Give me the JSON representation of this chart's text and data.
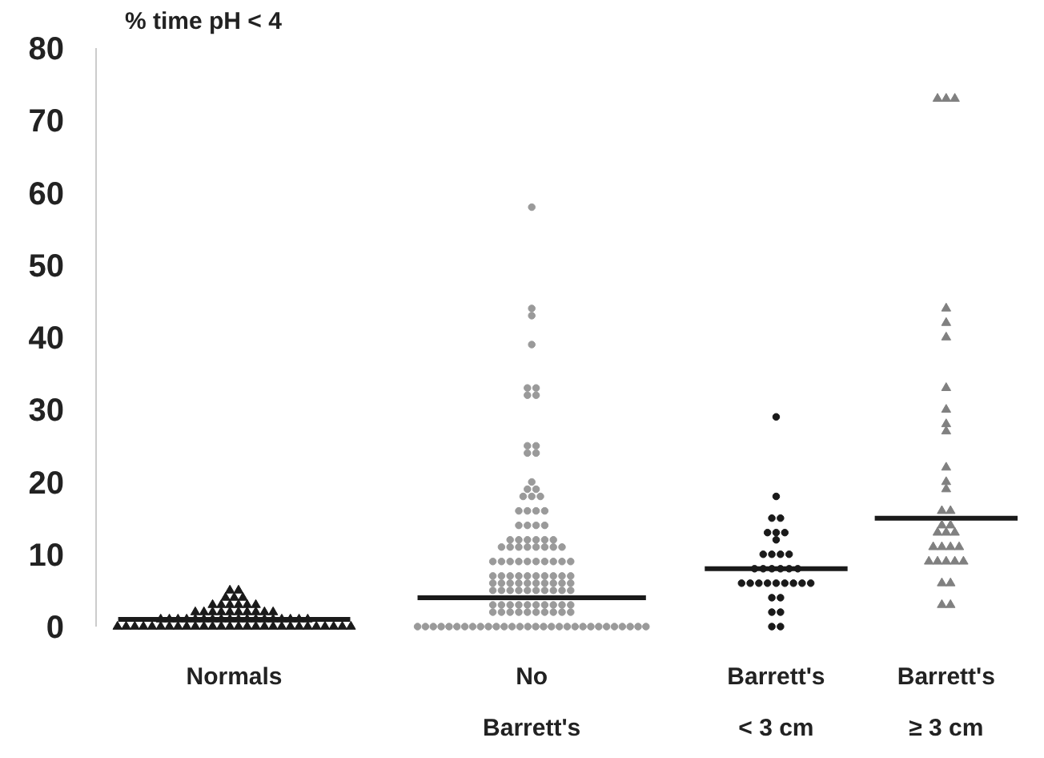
{
  "chart_data": {
    "type": "scatter",
    "ylabel": "% time pH < 4",
    "categories": [
      "Normals",
      "No\nBarrett's",
      "Barrett's\n< 3 cm",
      "Barrett's\n≥ 3 cm"
    ],
    "ylim": [
      0,
      80
    ],
    "yticks": [
      0,
      10,
      20,
      30,
      40,
      50,
      60,
      70,
      80
    ],
    "grid": false,
    "series": [
      {
        "marker": "triangle",
        "color": "#1a1a1a",
        "x": [
          "Normals",
          "Normals",
          "Normals",
          "Normals",
          "Normals",
          "Normals",
          "Normals",
          "Normals",
          "Normals",
          "Normals",
          "Normals",
          "Normals",
          "Normals",
          "Normals",
          "Normals",
          "Normals",
          "Normals",
          "Normals",
          "Normals",
          "Normals",
          "Normals",
          "Normals",
          "Normals",
          "Normals",
          "Normals",
          "Normals",
          "Normals",
          "Normals",
          "Normals",
          "Normals",
          "Normals",
          "Normals",
          "Normals",
          "Normals",
          "Normals",
          "Normals",
          "Normals",
          "Normals",
          "Normals",
          "Normals",
          "Normals",
          "Normals",
          "Normals",
          "Normals",
          "Normals",
          "Normals",
          "Normals",
          "Normals",
          "Normals",
          "Normals",
          "Normals",
          "Normals",
          "Normals",
          "Normals",
          "Normals",
          "Normals",
          "Normals",
          "Normals",
          "Normals",
          "Normals",
          "Normals",
          "Normals",
          "Normals",
          "Normals",
          "Normals",
          "Normals",
          "Normals"
        ],
        "values": [
          0,
          0,
          0,
          0,
          0,
          0,
          0,
          0,
          0,
          0,
          0,
          0,
          0,
          0,
          0,
          0,
          0,
          0,
          0,
          0,
          0,
          0,
          0,
          0,
          0,
          0,
          0,
          0,
          1,
          1,
          1,
          1,
          1,
          1,
          1,
          1,
          1,
          1,
          1,
          1,
          1,
          1,
          1,
          1,
          1,
          1,
          2,
          2,
          2,
          2,
          2,
          2,
          2,
          2,
          2,
          2,
          3,
          3,
          3,
          3,
          3,
          3,
          4,
          4,
          4,
          5,
          5
        ]
      },
      {
        "marker": "circle",
        "color": "#9a9a9a",
        "x": [
          "No\nBarrett's",
          "No\nBarrett's",
          "No\nBarrett's",
          "No\nBarrett's",
          "No\nBarrett's",
          "No\nBarrett's",
          "No\nBarrett's",
          "No\nBarrett's",
          "No\nBarrett's",
          "No\nBarrett's",
          "No\nBarrett's",
          "No\nBarrett's",
          "No\nBarrett's",
          "No\nBarrett's",
          "No\nBarrett's",
          "No\nBarrett's",
          "No\nBarrett's",
          "No\nBarrett's",
          "No\nBarrett's",
          "No\nBarrett's",
          "No\nBarrett's",
          "No\nBarrett's",
          "No\nBarrett's",
          "No\nBarrett's",
          "No\nBarrett's",
          "No\nBarrett's",
          "No\nBarrett's",
          "No\nBarrett's",
          "No\nBarrett's",
          "No\nBarrett's",
          "No\nBarrett's",
          "No\nBarrett's",
          "No\nBarrett's",
          "No\nBarrett's",
          "No\nBarrett's",
          "No\nBarrett's",
          "No\nBarrett's",
          "No\nBarrett's",
          "No\nBarrett's",
          "No\nBarrett's",
          "No\nBarrett's",
          "No\nBarrett's",
          "No\nBarrett's",
          "No\nBarrett's",
          "No\nBarrett's",
          "No\nBarrett's",
          "No\nBarrett's",
          "No\nBarrett's",
          "No\nBarrett's",
          "No\nBarrett's",
          "No\nBarrett's",
          "No\nBarrett's",
          "No\nBarrett's",
          "No\nBarrett's",
          "No\nBarrett's",
          "No\nBarrett's",
          "No\nBarrett's",
          "No\nBarrett's",
          "No\nBarrett's",
          "No\nBarrett's",
          "No\nBarrett's",
          "No\nBarrett's",
          "No\nBarrett's",
          "No\nBarrett's",
          "No\nBarrett's",
          "No\nBarrett's",
          "No\nBarrett's",
          "No\nBarrett's",
          "No\nBarrett's",
          "No\nBarrett's",
          "No\nBarrett's",
          "No\nBarrett's",
          "No\nBarrett's",
          "No\nBarrett's",
          "No\nBarrett's",
          "No\nBarrett's",
          "No\nBarrett's",
          "No\nBarrett's",
          "No\nBarrett's",
          "No\nBarrett's",
          "No\nBarrett's",
          "No\nBarrett's",
          "No\nBarrett's",
          "No\nBarrett's",
          "No\nBarrett's",
          "No\nBarrett's",
          "No\nBarrett's",
          "No\nBarrett's",
          "No\nBarrett's",
          "No\nBarrett's",
          "No\nBarrett's",
          "No\nBarrett's",
          "No\nBarrett's",
          "No\nBarrett's",
          "No\nBarrett's",
          "No\nBarrett's",
          "No\nBarrett's",
          "No\nBarrett's",
          "No\nBarrett's",
          "No\nBarrett's",
          "No\nBarrett's",
          "No\nBarrett's",
          "No\nBarrett's",
          "No\nBarrett's",
          "No\nBarrett's",
          "No\nBarrett's",
          "No\nBarrett's",
          "No\nBarrett's",
          "No\nBarrett's",
          "No\nBarrett's",
          "No\nBarrett's",
          "No\nBarrett's",
          "No\nBarrett's",
          "No\nBarrett's",
          "No\nBarrett's",
          "No\nBarrett's",
          "No\nBarrett's",
          "No\nBarrett's",
          "No\nBarrett's",
          "No\nBarrett's",
          "No\nBarrett's",
          "No\nBarrett's",
          "No\nBarrett's",
          "No\nBarrett's",
          "No\nBarrett's",
          "No\nBarrett's",
          "No\nBarrett's",
          "No\nBarrett's",
          "No\nBarrett's",
          "No\nBarrett's"
        ],
        "values": [
          0,
          0,
          0,
          0,
          0,
          0,
          0,
          0,
          0,
          0,
          0,
          0,
          0,
          0,
          0,
          0,
          0,
          0,
          0,
          0,
          0,
          0,
          0,
          0,
          0,
          0,
          0,
          0,
          0,
          0,
          2,
          2,
          2,
          2,
          2,
          2,
          2,
          2,
          2,
          2,
          3,
          3,
          3,
          3,
          3,
          3,
          3,
          3,
          3,
          3,
          5,
          5,
          5,
          5,
          5,
          5,
          5,
          5,
          5,
          5,
          6,
          6,
          6,
          6,
          6,
          6,
          6,
          6,
          6,
          6,
          7,
          7,
          7,
          7,
          7,
          7,
          7,
          7,
          7,
          7,
          9,
          9,
          9,
          9,
          9,
          9,
          9,
          9,
          9,
          9,
          11,
          11,
          11,
          11,
          11,
          11,
          11,
          11,
          12,
          12,
          12,
          12,
          12,
          12,
          14,
          14,
          14,
          14,
          16,
          16,
          16,
          16,
          18,
          18,
          18,
          19,
          19,
          20,
          24,
          24,
          25,
          25,
          32,
          32,
          33,
          33,
          39,
          43,
          44,
          58
        ]
      },
      {
        "marker": "circle",
        "color": "#1a1a1a",
        "x": [
          "Barrett's\n< 3 cm",
          "Barrett's\n< 3 cm",
          "Barrett's\n< 3 cm",
          "Barrett's\n< 3 cm",
          "Barrett's\n< 3 cm",
          "Barrett's\n< 3 cm",
          "Barrett's\n< 3 cm",
          "Barrett's\n< 3 cm",
          "Barrett's\n< 3 cm",
          "Barrett's\n< 3 cm",
          "Barrett's\n< 3 cm",
          "Barrett's\n< 3 cm",
          "Barrett's\n< 3 cm",
          "Barrett's\n< 3 cm",
          "Barrett's\n< 3 cm",
          "Barrett's\n< 3 cm",
          "Barrett's\n< 3 cm",
          "Barrett's\n< 3 cm",
          "Barrett's\n< 3 cm",
          "Barrett's\n< 3 cm",
          "Barrett's\n< 3 cm",
          "Barrett's\n< 3 cm",
          "Barrett's\n< 3 cm",
          "Barrett's\n< 3 cm",
          "Barrett's\n< 3 cm",
          "Barrett's\n< 3 cm",
          "Barrett's\n< 3 cm",
          "Barrett's\n< 3 cm",
          "Barrett's\n< 3 cm",
          "Barrett's\n< 3 cm",
          "Barrett's\n< 3 cm",
          "Barrett's\n< 3 cm",
          "Barrett's\n< 3 cm"
        ],
        "values": [
          0,
          0,
          2,
          2,
          4,
          4,
          6,
          6,
          6,
          6,
          6,
          6,
          6,
          6,
          6,
          8,
          8,
          8,
          8,
          8,
          8,
          10,
          10,
          10,
          10,
          12,
          13,
          13,
          13,
          15,
          15,
          18,
          29
        ]
      },
      {
        "marker": "triangle",
        "color": "#808080",
        "x": [
          "Barrett's\n≥ 3 cm",
          "Barrett's\n≥ 3 cm",
          "Barrett's\n≥ 3 cm",
          "Barrett's\n≥ 3 cm",
          "Barrett's\n≥ 3 cm",
          "Barrett's\n≥ 3 cm",
          "Barrett's\n≥ 3 cm",
          "Barrett's\n≥ 3 cm",
          "Barrett's\n≥ 3 cm",
          "Barrett's\n≥ 3 cm",
          "Barrett's\n≥ 3 cm",
          "Barrett's\n≥ 3 cm",
          "Barrett's\n≥ 3 cm",
          "Barrett's\n≥ 3 cm",
          "Barrett's\n≥ 3 cm",
          "Barrett's\n≥ 3 cm",
          "Barrett's\n≥ 3 cm",
          "Barrett's\n≥ 3 cm",
          "Barrett's\n≥ 3 cm",
          "Barrett's\n≥ 3 cm",
          "Barrett's\n≥ 3 cm",
          "Barrett's\n≥ 3 cm",
          "Barrett's\n≥ 3 cm",
          "Barrett's\n≥ 3 cm",
          "Barrett's\n≥ 3 cm",
          "Barrett's\n≥ 3 cm",
          "Barrett's\n≥ 3 cm",
          "Barrett's\n≥ 3 cm",
          "Barrett's\n≥ 3 cm",
          "Barrett's\n≥ 3 cm",
          "Barrett's\n≥ 3 cm",
          "Barrett's\n≥ 3 cm",
          "Barrett's\n≥ 3 cm"
        ],
        "values": [
          3,
          3,
          6,
          6,
          9,
          9,
          9,
          9,
          9,
          11,
          11,
          11,
          11,
          13,
          13,
          13,
          14,
          14,
          16,
          16,
          19,
          20,
          22,
          27,
          28,
          30,
          33,
          40,
          42,
          44,
          73,
          73,
          73
        ]
      },
      {
        "type": "box",
        "color": "#1a1a1a",
        "boxes": [
          {
            "low": 1,
            "q1": 1,
            "median": 1,
            "q3": 1,
            "high": 1
          },
          {
            "low": 4,
            "q1": 4,
            "median": 4,
            "q3": 4,
            "high": 4
          },
          {
            "low": 8,
            "q1": 8,
            "median": 8,
            "q3": 8,
            "high": 8
          },
          {
            "low": 15,
            "q1": 15,
            "median": 15,
            "q3": 15,
            "high": 15
          }
        ]
      }
    ]
  }
}
